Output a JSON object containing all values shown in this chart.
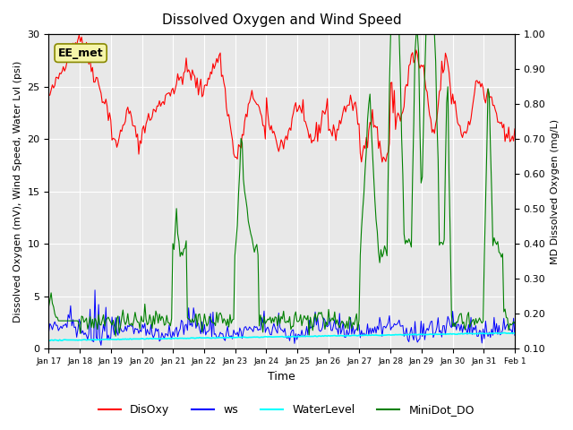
{
  "title": "Dissolved Oxygen and Wind Speed",
  "xlabel": "Time",
  "ylabel_left": "Dissolved Oxygen (mV), Wind Speed, Water Lvl (psi)",
  "ylabel_right": "MD Dissolved Oxygen (mg/L)",
  "ylim_left": [
    0,
    30
  ],
  "ylim_right": [
    0.1,
    1.0
  ],
  "annotation": "EE_met",
  "background_color": "#e8e8e8",
  "grid_color": "#ffffff",
  "tick_labels": [
    "Jan 17",
    "Jan 18",
    "Jan 19",
    "Jan 20",
    "Jan 21",
    "Jan 22",
    "Jan 23",
    "Jan 24",
    "Jan 25",
    "Jan 26",
    "Jan 27",
    "Jan 28",
    "Jan 29",
    "Jan 30",
    "Jan 31",
    "Feb 1"
  ]
}
